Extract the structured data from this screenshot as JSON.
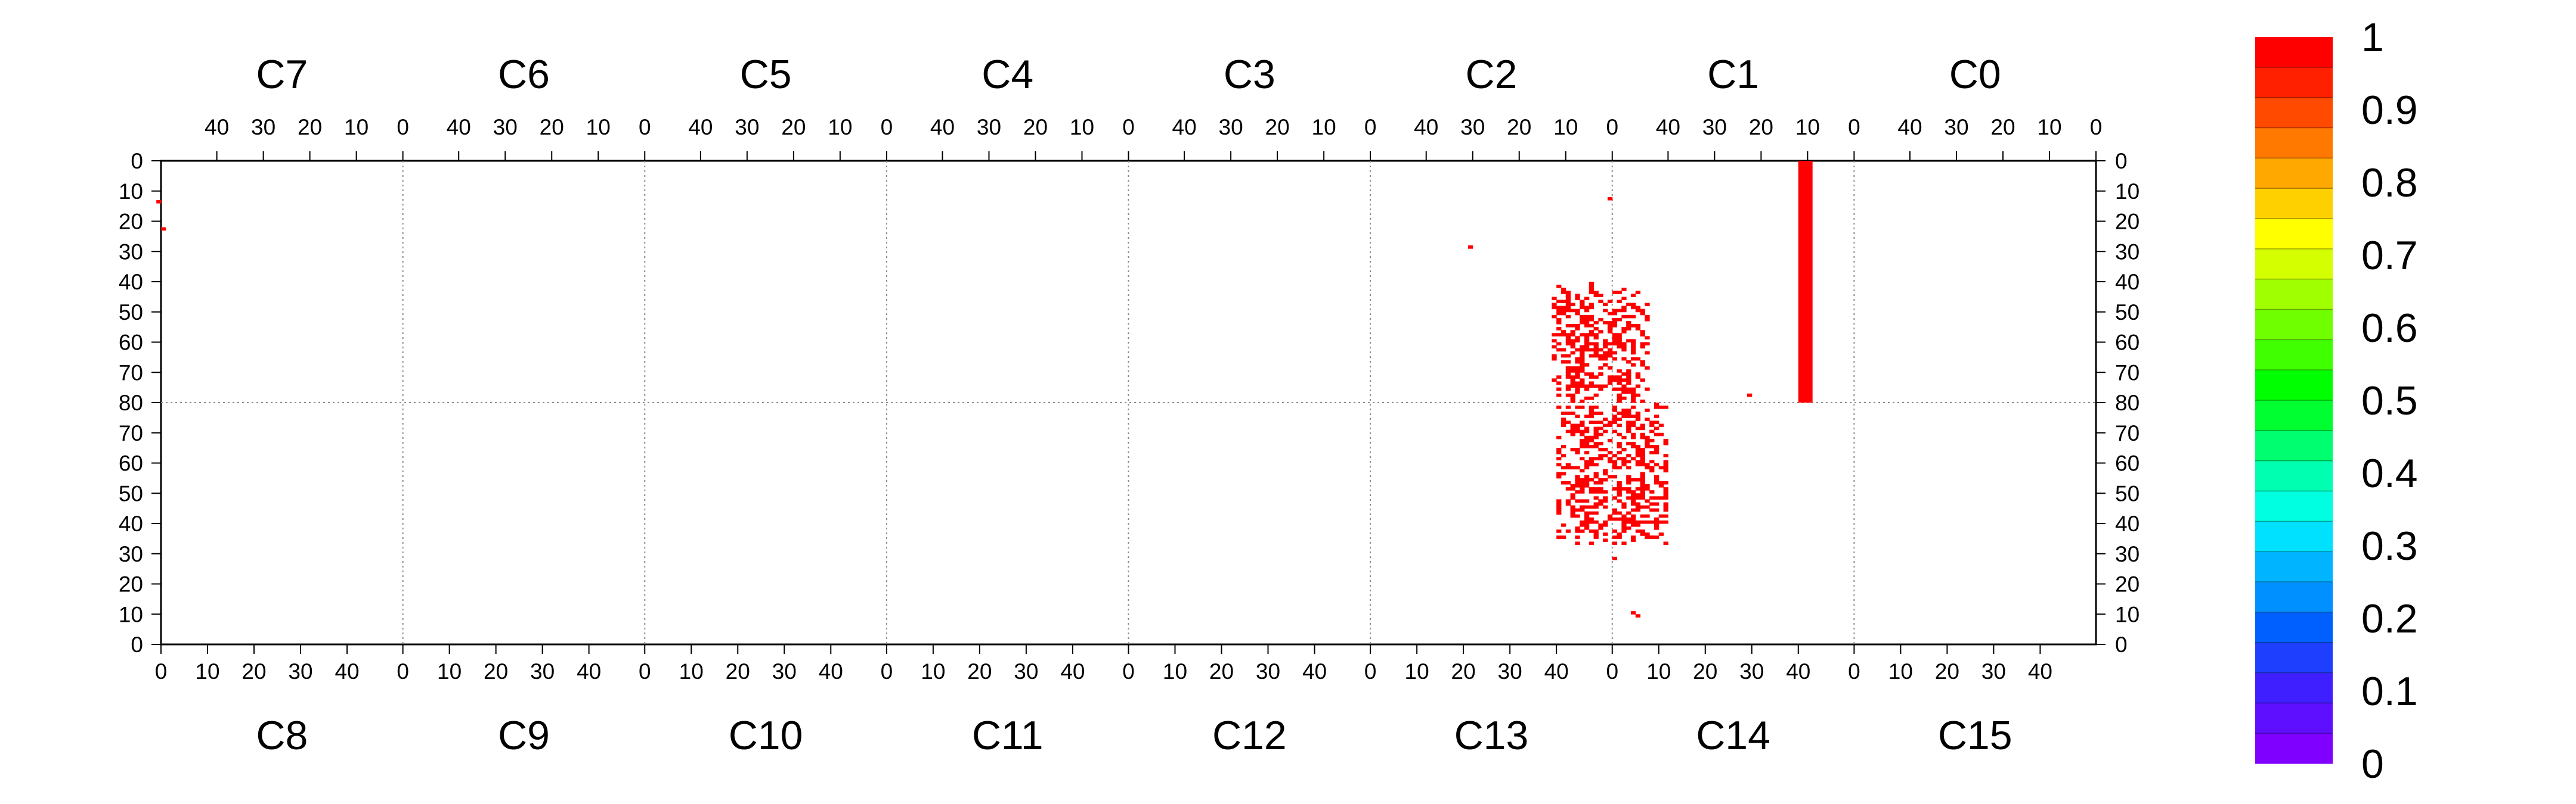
{
  "chart_data": {
    "type": "heatmap",
    "title": "",
    "xlabel": "",
    "ylabel": "",
    "grid": "dotted boundaries between chips",
    "top_chips": [
      "C7",
      "C6",
      "C5",
      "C4",
      "C3",
      "C2",
      "C1",
      "C0"
    ],
    "bottom_chips": [
      "C8",
      "C9",
      "C10",
      "C11",
      "C12",
      "C13",
      "C14",
      "C15"
    ],
    "chip_x_range": [
      0,
      52
    ],
    "top_x_ticks": [
      "40",
      "30",
      "20",
      "10",
      "0"
    ],
    "bottom_x_ticks": [
      "0",
      "10",
      "20",
      "30",
      "40"
    ],
    "top_y_range": [
      0,
      80
    ],
    "bottom_y_range": [
      0,
      80
    ],
    "top_y_ticks": [
      "0",
      "10",
      "20",
      "30",
      "40",
      "50",
      "60",
      "70",
      "80"
    ],
    "bottom_y_ticks": [
      "80",
      "70",
      "60",
      "50",
      "40",
      "30",
      "20",
      "10",
      "0"
    ],
    "colorbar": {
      "range": [
        0,
        1
      ],
      "tick_labels": [
        "1",
        "0.9",
        "0.8",
        "0.7",
        "0.6",
        "0.5",
        "0.4",
        "0.3",
        "0.2",
        "0.1",
        "0"
      ],
      "colors": [
        "#7f00ff",
        "#5f0fff",
        "#3f1fff",
        "#1f3fff",
        "#0060ff",
        "#0090ff",
        "#00b4ff",
        "#00e0ff",
        "#00ffe0",
        "#00ffb0",
        "#00ff70",
        "#00ff30",
        "#00ff00",
        "#40ff00",
        "#70ff00",
        "#a0ff00",
        "#d4ff00",
        "#ffff00",
        "#ffd000",
        "#ffa800",
        "#ff7800",
        "#ff4a00",
        "#ff2000",
        "#ff0000"
      ]
    },
    "hit_color": "#ff0000",
    "hits": [
      {
        "chip": "C7",
        "col": 52,
        "row": 13,
        "value": 1
      },
      {
        "chip": "C7",
        "col": 51,
        "row": 22,
        "value": 1
      },
      {
        "chip": "C2",
        "col": 30,
        "row": 28,
        "value": 1
      },
      {
        "chip": "C2",
        "col": 0,
        "row": 12,
        "value": 1
      },
      {
        "chip": "C2",
        "col": 2,
        "row": 44,
        "value": 1
      },
      {
        "chip": "C2",
        "col": 5,
        "row": 48,
        "value": 1
      },
      {
        "chip": "C2",
        "col": 6,
        "row": 53,
        "value": 1
      },
      {
        "chip": "C2",
        "col": 3,
        "row": 57,
        "value": 1
      },
      {
        "chip": "C2",
        "col": 5,
        "row": 61,
        "value": 1
      },
      {
        "chip": "C2",
        "col": 7,
        "row": 66,
        "value": 1
      },
      {
        "chip": "C2",
        "col": 2,
        "row": 70,
        "value": 1
      },
      {
        "chip": "C2",
        "col": 5,
        "row": 74,
        "value": 1
      },
      {
        "chip": "C2",
        "col": 4,
        "row": 78,
        "value": 1
      },
      {
        "chip": "C2",
        "col": 10,
        "row": 56,
        "value": 1
      },
      {
        "chip": "C2",
        "col": 8,
        "row": 73,
        "value": 1
      },
      {
        "chip": "C1",
        "col": 51,
        "row": 43,
        "value": 1
      },
      {
        "chip": "C1",
        "col": 49,
        "row": 48,
        "value": 1
      },
      {
        "chip": "C1",
        "col": 47,
        "row": 54,
        "value": 1
      },
      {
        "chip": "C1",
        "col": 50,
        "row": 60,
        "value": 1
      },
      {
        "chip": "C1",
        "col": 48,
        "row": 66,
        "value": 1
      },
      {
        "chip": "C1",
        "col": 46,
        "row": 71,
        "value": 1
      },
      {
        "chip": "C1",
        "col": 49,
        "row": 76,
        "value": 1
      },
      {
        "chip": "C1",
        "col": 51,
        "row": 65,
        "value": 1
      },
      {
        "chip": "C1",
        "col": 45,
        "row": 57,
        "value": 1
      },
      {
        "chip": "C1",
        "col": 22,
        "row": 77,
        "value": 1
      },
      {
        "chip": "C1",
        "col": 11,
        "row": 0,
        "value": 1
      },
      {
        "chip": "C13",
        "col": 42,
        "row": 78,
        "value": 1
      },
      {
        "chip": "C13",
        "col": 45,
        "row": 73,
        "value": 1
      },
      {
        "chip": "C13",
        "col": 47,
        "row": 68,
        "value": 1
      },
      {
        "chip": "C13",
        "col": 44,
        "row": 64,
        "value": 1
      },
      {
        "chip": "C13",
        "col": 48,
        "row": 59,
        "value": 1
      },
      {
        "chip": "C13",
        "col": 46,
        "row": 55,
        "value": 1
      },
      {
        "chip": "C13",
        "col": 49,
        "row": 50,
        "value": 1
      },
      {
        "chip": "C13",
        "col": 45,
        "row": 45,
        "value": 1
      },
      {
        "chip": "C13",
        "col": 47,
        "row": 40,
        "value": 1
      },
      {
        "chip": "C13",
        "col": 50,
        "row": 36,
        "value": 1
      },
      {
        "chip": "C14",
        "col": 1,
        "row": 76,
        "value": 1
      },
      {
        "chip": "C14",
        "col": 3,
        "row": 70,
        "value": 1
      },
      {
        "chip": "C14",
        "col": 5,
        "row": 65,
        "value": 1
      },
      {
        "chip": "C14",
        "col": 2,
        "row": 60,
        "value": 1
      },
      {
        "chip": "C14",
        "col": 6,
        "row": 55,
        "value": 1
      },
      {
        "chip": "C14",
        "col": 4,
        "row": 50,
        "value": 1
      },
      {
        "chip": "C14",
        "col": 7,
        "row": 45,
        "value": 1
      },
      {
        "chip": "C14",
        "col": 3,
        "row": 40,
        "value": 1
      },
      {
        "chip": "C14",
        "col": 8,
        "row": 35,
        "value": 1
      },
      {
        "chip": "C14",
        "col": 10,
        "row": 58,
        "value": 1
      },
      {
        "chip": "C14",
        "col": 0,
        "row": 28,
        "value": 1
      },
      {
        "chip": "C14",
        "col": 4,
        "row": 10,
        "value": 1
      },
      {
        "chip": "C14",
        "col": 5,
        "row": 9,
        "value": 1
      }
    ],
    "hit_clusters": [
      {
        "chip": "C2",
        "cols": [
          0,
          12
        ],
        "rows": [
          40,
          80
        ],
        "density": 0.55,
        "value": 1
      },
      {
        "chip": "C1",
        "cols": [
          44,
          52
        ],
        "rows": [
          42,
          80
        ],
        "density": 0.5,
        "value": 1
      },
      {
        "chip": "C13",
        "cols": [
          40,
          52
        ],
        "rows": [
          33,
          80
        ],
        "density": 0.5,
        "value": 1
      },
      {
        "chip": "C14",
        "cols": [
          0,
          11
        ],
        "rows": [
          33,
          80
        ],
        "density": 0.55,
        "value": 1
      }
    ],
    "hot_columns": [
      {
        "chip": "C1",
        "cols": [
          9,
          11
        ],
        "rows": [
          0,
          80
        ],
        "value": 1
      }
    ]
  }
}
